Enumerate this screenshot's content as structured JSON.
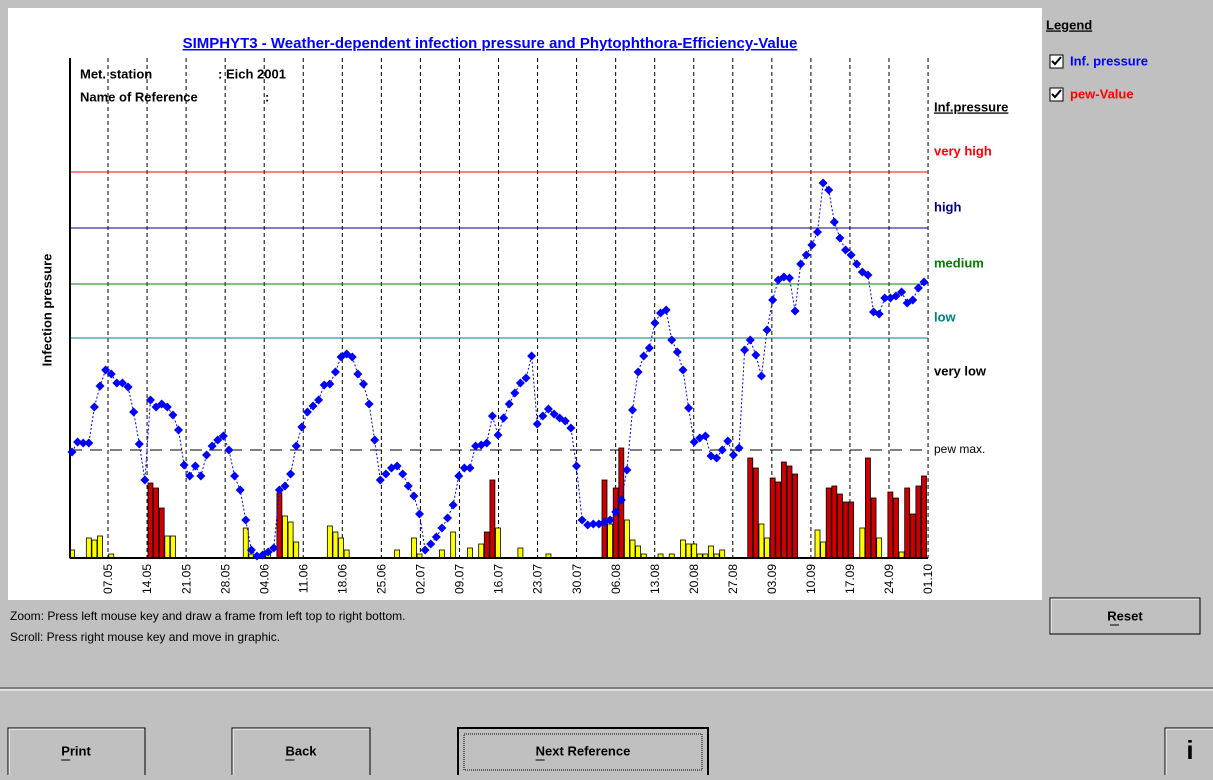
{
  "chart_data": {
    "type": "line",
    "title": "SIMPHYT3 - Weather-dependent infection pressure and Phytophthora-Efficiency-Value",
    "meta": [
      {
        "key": "Met. station",
        "value": ": Eich 2001"
      },
      {
        "key": "Name of Reference",
        "value": ":"
      }
    ],
    "y_label": "Infection pressure",
    "levels_title": "Inf.pressure",
    "levels": [
      {
        "label": "very high",
        "value": 7.72,
        "color": "#ff0000"
      },
      {
        "label": "high",
        "value": 6.6,
        "color": "#000080"
      },
      {
        "label": "medium",
        "value": 5.48,
        "color": "#008000"
      },
      {
        "label": "low",
        "value": 4.4,
        "color": "#008080"
      },
      {
        "label": "very low",
        "color": "#000000"
      }
    ],
    "pew_max": {
      "label": "pew max.",
      "value": 2.16
    },
    "ylim": [
      0,
      10
    ],
    "xticks": [
      "07.05",
      "14.05",
      "21.05",
      "28.05",
      "04.06",
      "11.06",
      "18.06",
      "25.06",
      "02.07",
      "09.07",
      "16.07",
      "23.07",
      "30.07",
      "06.08",
      "13.08",
      "20.08",
      "27.08",
      "03.09",
      "10.09",
      "17.09",
      "24.09",
      "01.10"
    ],
    "grid": true,
    "series": [
      {
        "name": "Inf. pressure",
        "color": "#0000ff",
        "values": [
          2.12,
          2.32,
          2.3,
          2.3,
          3.02,
          3.44,
          3.76,
          3.68,
          3.5,
          3.5,
          3.42,
          2.92,
          2.28,
          1.56,
          3.16,
          3.02,
          3.08,
          3.02,
          2.86,
          2.56,
          1.86,
          1.64,
          1.84,
          1.64,
          2.06,
          2.24,
          2.36,
          2.44,
          2.16,
          1.64,
          1.36,
          0.76,
          0.16,
          0.04,
          0.06,
          0.12,
          0.2,
          1.36,
          1.44,
          1.68,
          2.24,
          2.62,
          2.92,
          3.04,
          3.16,
          3.46,
          3.48,
          3.72,
          4.02,
          4.08,
          4.02,
          3.68,
          3.48,
          3.08,
          2.36,
          1.56,
          1.68,
          1.8,
          1.84,
          1.68,
          1.44,
          1.24,
          0.88,
          0.16,
          0.28,
          0.42,
          0.6,
          0.8,
          1.06,
          1.64,
          1.8,
          1.8,
          2.24,
          2.26,
          2.3,
          2.84,
          2.46,
          2.8,
          3.08,
          3.3,
          3.5,
          3.6,
          4.04,
          2.68,
          2.84,
          2.98,
          2.88,
          2.8,
          2.74,
          2.6,
          1.84,
          0.76,
          0.66,
          0.68,
          0.68,
          0.72,
          0.76,
          0.92,
          1.16,
          1.76,
          2.96,
          3.72,
          4.04,
          4.2,
          4.7,
          4.9,
          4.96,
          4.36,
          4.12,
          3.76,
          3.0,
          2.32,
          2.4,
          2.44,
          2.04,
          2.0,
          2.16,
          2.34,
          2.06,
          2.2,
          4.16,
          4.36,
          4.06,
          3.64,
          4.56,
          5.16,
          5.56,
          5.62,
          5.6,
          4.94,
          5.88,
          6.06,
          6.26,
          6.52,
          7.5,
          7.36,
          6.72,
          6.4,
          6.16,
          6.06,
          5.88,
          5.72,
          5.66,
          4.92,
          4.88,
          5.2,
          5.2,
          5.24,
          5.32,
          5.1,
          5.16,
          5.4,
          5.52
        ]
      },
      {
        "name": "pew-Value",
        "color": "#ff0000"
      }
    ],
    "bars": [
      {
        "color": "#ffff00",
        "values": [
          0.16,
          null,
          null,
          0.4,
          0.36,
          0.44,
          null,
          0.08,
          null,
          null,
          null,
          null,
          null,
          null,
          null,
          null,
          null,
          0.44,
          0.44,
          null,
          null,
          null,
          null,
          null,
          null,
          null,
          null,
          null,
          null,
          null,
          null,
          0.6,
          0.08,
          null,
          0.08,
          0.08,
          null,
          null,
          0.84,
          0.72,
          0.32,
          null,
          null,
          null,
          null,
          null,
          0.64,
          0.52,
          0.4,
          0.16,
          null,
          null,
          null,
          null,
          null,
          null,
          null,
          null,
          0.16,
          null,
          null,
          0.4,
          0.08,
          null,
          null,
          null,
          0.16,
          null,
          0.52,
          null,
          null,
          0.2,
          null,
          0.28,
          null,
          null,
          0.6,
          null,
          null,
          null,
          0.2,
          null,
          null,
          null,
          null,
          0.08,
          null,
          null,
          null,
          null,
          null,
          null,
          null,
          null,
          null,
          null,
          0.68,
          null,
          null,
          0.76,
          0.36,
          0.24,
          0.08,
          null,
          null,
          0.08,
          null,
          0.08,
          null,
          0.36,
          0.28,
          0.28,
          0.08,
          0.08,
          0.24,
          0.08,
          0.16,
          null,
          null,
          null,
          null,
          null,
          null,
          0.68,
          0.4,
          null,
          null,
          null,
          null,
          null,
          null,
          null,
          null,
          0.56,
          0.32,
          null,
          null,
          null,
          null,
          null,
          null,
          0.6,
          null,
          null,
          0.4,
          null,
          null,
          null,
          0.12,
          null,
          null,
          null,
          null
        ]
      },
      {
        "color": "#cc0000",
        "values": [
          null,
          null,
          null,
          null,
          null,
          null,
          null,
          null,
          null,
          null,
          null,
          null,
          null,
          null,
          1.5,
          1.4,
          1.0,
          null,
          null,
          null,
          null,
          null,
          null,
          null,
          null,
          null,
          null,
          null,
          null,
          null,
          null,
          null,
          null,
          null,
          null,
          null,
          null,
          1.3,
          null,
          null,
          null,
          null,
          null,
          null,
          null,
          null,
          null,
          null,
          null,
          null,
          null,
          null,
          null,
          null,
          null,
          null,
          null,
          null,
          null,
          null,
          null,
          null,
          null,
          null,
          null,
          null,
          null,
          null,
          null,
          null,
          null,
          null,
          null,
          null,
          0.52,
          1.56,
          null,
          null,
          null,
          null,
          null,
          null,
          null,
          null,
          null,
          null,
          null,
          null,
          null,
          null,
          null,
          null,
          null,
          null,
          null,
          1.56,
          null,
          1.4,
          2.2,
          null,
          null,
          null,
          null,
          null,
          null,
          null,
          null,
          null,
          null,
          null,
          null,
          null,
          null,
          null,
          null,
          null,
          null,
          null,
          null,
          null,
          null,
          2.0,
          1.8,
          null,
          null,
          1.6,
          1.52,
          1.92,
          1.84,
          1.68,
          null,
          null,
          null,
          null,
          null,
          1.4,
          1.44,
          1.28,
          1.12,
          1.12,
          null,
          null,
          2.0,
          1.2,
          null,
          null,
          1.32,
          1.2,
          null,
          1.4,
          0.88,
          1.44,
          1.64
        ]
      }
    ]
  },
  "ui": {
    "legend_title": "Legend",
    "reset": "Reset",
    "hints": [
      "Zoom: Press left mouse key and draw a frame from left top to right bottom.",
      "Scroll: Press right mouse key and move in graphic."
    ],
    "buttons": [
      "Print",
      "Back",
      "Next Reference"
    ],
    "info": "i"
  }
}
